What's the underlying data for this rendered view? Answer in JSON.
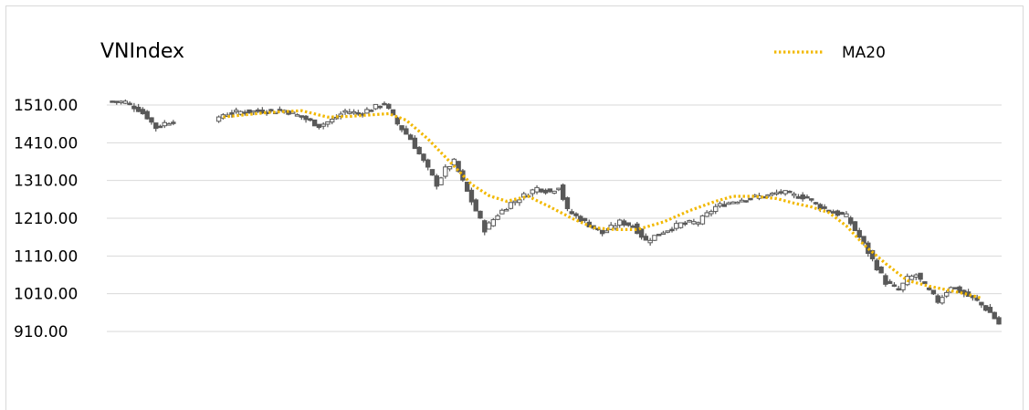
{
  "chart_data": {
    "type": "candlestick",
    "title": "VNIndex",
    "xlabel": "",
    "ylabel": "",
    "ylim": [
      810,
      1560
    ],
    "y_ticks": [
      910,
      1010,
      1110,
      1210,
      1310,
      1410,
      1510
    ],
    "y_tick_labels": [
      "910.00",
      "1010.00",
      "1110.00",
      "1210.00",
      "1310.00",
      "1410.00",
      "1510.00"
    ],
    "grid": true,
    "legend": {
      "position": "top-right",
      "entries": [
        {
          "label": "MA20",
          "style": "dotted",
          "color": "#f2b800"
        }
      ]
    },
    "colors": {
      "candle": "#595959",
      "ma20": "#f2b800",
      "grid": "#d9d9d9"
    },
    "gap_after_index": 14,
    "candles_close_anchors": [
      [
        0,
        1520
      ],
      [
        3,
        1518
      ],
      [
        6,
        1498
      ],
      [
        8,
        1478
      ],
      [
        10,
        1450
      ],
      [
        12,
        1462
      ],
      [
        15,
        1472
      ],
      [
        16,
        1485
      ],
      [
        20,
        1492
      ],
      [
        25,
        1494
      ],
      [
        30,
        1496
      ],
      [
        34,
        1478
      ],
      [
        38,
        1455
      ],
      [
        41,
        1470
      ],
      [
        44,
        1494
      ],
      [
        47,
        1488
      ],
      [
        50,
        1500
      ],
      [
        53,
        1515
      ],
      [
        56,
        1460
      ],
      [
        59,
        1420
      ],
      [
        62,
        1360
      ],
      [
        65,
        1300
      ],
      [
        67,
        1340
      ],
      [
        69,
        1360
      ],
      [
        72,
        1280
      ],
      [
        76,
        1180
      ],
      [
        79,
        1220
      ],
      [
        82,
        1250
      ],
      [
        85,
        1270
      ],
      [
        88,
        1290
      ],
      [
        91,
        1280
      ],
      [
        93,
        1295
      ],
      [
        95,
        1230
      ],
      [
        99,
        1200
      ],
      [
        103,
        1170
      ],
      [
        107,
        1200
      ],
      [
        110,
        1190
      ],
      [
        113,
        1150
      ],
      [
        117,
        1175
      ],
      [
        121,
        1195
      ],
      [
        125,
        1200
      ],
      [
        129,
        1240
      ],
      [
        133,
        1255
      ],
      [
        137,
        1265
      ],
      [
        141,
        1270
      ],
      [
        144,
        1280
      ],
      [
        147,
        1270
      ],
      [
        150,
        1265
      ],
      [
        153,
        1240
      ],
      [
        156,
        1225
      ],
      [
        159,
        1215
      ],
      [
        162,
        1160
      ],
      [
        165,
        1100
      ],
      [
        168,
        1040
      ],
      [
        171,
        1020
      ],
      [
        173,
        1050
      ],
      [
        175,
        1060
      ],
      [
        177,
        1030
      ],
      [
        180,
        990
      ],
      [
        183,
        1030
      ],
      [
        186,
        1010
      ],
      [
        189,
        990
      ],
      [
        192,
        960
      ],
      [
        194,
        930
      ]
    ],
    "ma20_anchors": [
      [
        16,
        1478
      ],
      [
        26,
        1490
      ],
      [
        34,
        1495
      ],
      [
        40,
        1478
      ],
      [
        45,
        1480
      ],
      [
        54,
        1487
      ],
      [
        58,
        1470
      ],
      [
        63,
        1420
      ],
      [
        68,
        1360
      ],
      [
        73,
        1300
      ],
      [
        77,
        1270
      ],
      [
        81,
        1255
      ],
      [
        86,
        1268
      ],
      [
        91,
        1240
      ],
      [
        96,
        1210
      ],
      [
        101,
        1185
      ],
      [
        106,
        1180
      ],
      [
        111,
        1180
      ],
      [
        117,
        1200
      ],
      [
        123,
        1230
      ],
      [
        129,
        1255
      ],
      [
        133,
        1268
      ],
      [
        138,
        1268
      ],
      [
        143,
        1262
      ],
      [
        147,
        1250
      ],
      [
        151,
        1240
      ],
      [
        155,
        1225
      ],
      [
        159,
        1190
      ],
      [
        163,
        1140
      ],
      [
        168,
        1090
      ],
      [
        173,
        1045
      ],
      [
        178,
        1030
      ],
      [
        183,
        1018
      ],
      [
        187,
        1008
      ],
      [
        190,
        998
      ]
    ]
  }
}
